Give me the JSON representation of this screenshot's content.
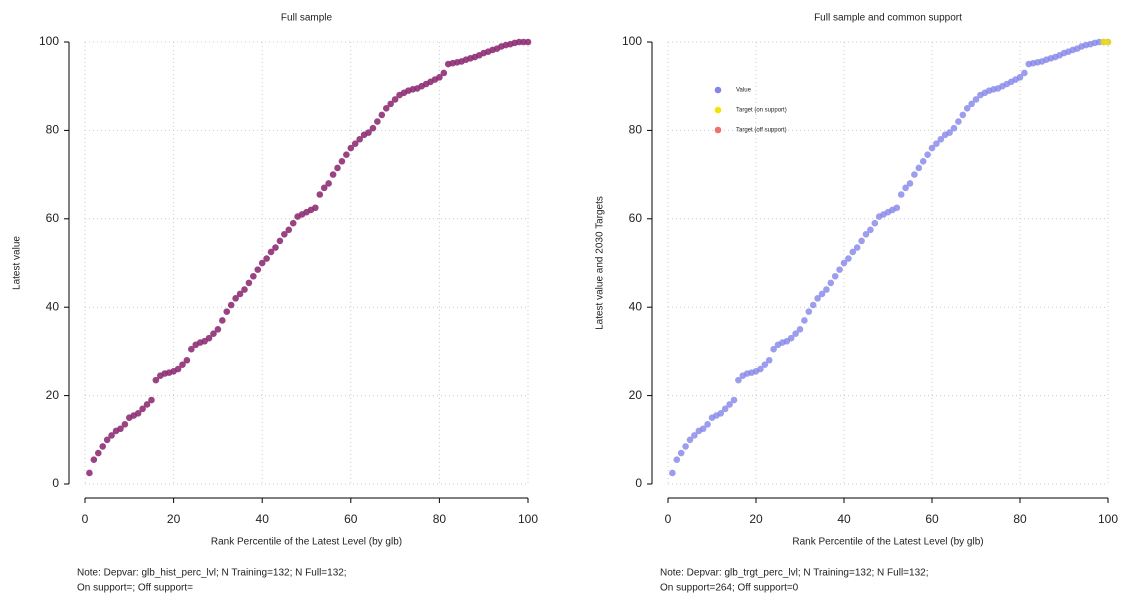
{
  "chart_data": [
    {
      "type": "scatter",
      "title": "Full sample",
      "xlabel": "Rank Percentile of the Latest Level (by glb)",
      "ylabel": "Latest value",
      "note": [
        "Note: Depvar: glb_hist_perc_lvl; N Training=132; N Full=132;",
        "On support=; Off support="
      ],
      "xlim": [
        0,
        100
      ],
      "ylim": [
        0,
        100
      ],
      "xticks": [
        0,
        20,
        40,
        60,
        80,
        100
      ],
      "yticks": [
        0,
        20,
        40,
        60,
        80,
        100
      ],
      "grid": true,
      "x": [
        1,
        2,
        3,
        4,
        5,
        6,
        7,
        8,
        9,
        10,
        11,
        12,
        13,
        14,
        15,
        16,
        17,
        18,
        19,
        20,
        21,
        22,
        23,
        24,
        25,
        26,
        27,
        28,
        29,
        30,
        31,
        32,
        33,
        34,
        35,
        36,
        37,
        38,
        39,
        40,
        41,
        42,
        43,
        44,
        45,
        46,
        47,
        48,
        49,
        50,
        51,
        52,
        53,
        54,
        55,
        56,
        57,
        58,
        59,
        60,
        61,
        62,
        63,
        64,
        65,
        66,
        67,
        68,
        69,
        70,
        71,
        72,
        73,
        74,
        75,
        76,
        77,
        78,
        79,
        80,
        81,
        82,
        83,
        84,
        85,
        86,
        87,
        88,
        89,
        90,
        91,
        92,
        93,
        94,
        95,
        96,
        97,
        98,
        99,
        100
      ],
      "series": [
        {
          "color": "#8e2f74",
          "values": [
            2.5,
            5.5,
            7,
            8.5,
            10,
            11,
            12,
            12.5,
            13.5,
            15,
            15.5,
            16,
            17,
            18,
            19,
            23.5,
            24.5,
            25,
            25.2,
            25.5,
            26,
            27,
            28,
            30.5,
            31.5,
            32,
            32.3,
            33,
            34,
            35,
            37,
            39,
            40.5,
            42,
            43,
            44,
            45.5,
            47,
            48.5,
            50,
            51,
            52.5,
            53.5,
            55,
            56.5,
            57.5,
            59,
            60.5,
            61,
            61.5,
            62,
            62.5,
            65.5,
            67,
            68,
            70,
            71.5,
            73,
            74.5,
            76,
            77,
            78,
            79,
            79.5,
            80.5,
            82,
            83.5,
            85,
            86,
            87,
            88,
            88.5,
            89,
            89.3,
            89.5,
            90,
            90.5,
            91,
            91.5,
            92,
            93,
            95,
            95.2,
            95.4,
            95.6,
            96,
            96.3,
            96.6,
            97,
            97.5,
            97.8,
            98.2,
            98.5,
            99,
            99.3,
            99.5,
            99.8,
            100,
            100,
            100
          ]
        }
      ]
    },
    {
      "type": "scatter",
      "title": "Full sample and common support",
      "xlabel": "Rank Percentile of the Latest Level (by glb)",
      "ylabel": "Latest value and 2030 Targets",
      "note": [
        "Note: Depvar: glb_trgt_perc_lvl; N Training=132; N Full=132;",
        "On support=264; Off support=0"
      ],
      "xlim": [
        0,
        100
      ],
      "ylim": [
        0,
        100
      ],
      "xticks": [
        0,
        20,
        40,
        60,
        80,
        100
      ],
      "yticks": [
        0,
        20,
        40,
        60,
        80,
        100
      ],
      "grid": true,
      "legend": "upper left",
      "x": [
        1,
        2,
        3,
        4,
        5,
        6,
        7,
        8,
        9,
        10,
        11,
        12,
        13,
        14,
        15,
        16,
        17,
        18,
        19,
        20,
        21,
        22,
        23,
        24,
        25,
        26,
        27,
        28,
        29,
        30,
        31,
        32,
        33,
        34,
        35,
        36,
        37,
        38,
        39,
        40,
        41,
        42,
        43,
        44,
        45,
        46,
        47,
        48,
        49,
        50,
        51,
        52,
        53,
        54,
        55,
        56,
        57,
        58,
        59,
        60,
        61,
        62,
        63,
        64,
        65,
        66,
        67,
        68,
        69,
        70,
        71,
        72,
        73,
        74,
        75,
        76,
        77,
        78,
        79,
        80,
        81,
        82,
        83,
        84,
        85,
        86,
        87,
        88,
        89,
        90,
        91,
        92,
        93,
        94,
        95,
        96,
        97,
        98,
        99,
        100
      ],
      "series": [
        {
          "name": "Value",
          "color": "#8585ea",
          "values": [
            2.5,
            5.5,
            7,
            8.5,
            10,
            11,
            12,
            12.5,
            13.5,
            15,
            15.5,
            16,
            17,
            18,
            19,
            23.5,
            24.5,
            25,
            25.2,
            25.5,
            26,
            27,
            28,
            30.5,
            31.5,
            32,
            32.3,
            33,
            34,
            35,
            37,
            39,
            40.5,
            42,
            43,
            44,
            45.5,
            47,
            48.5,
            50,
            51,
            52.5,
            53.5,
            55,
            56.5,
            57.5,
            59,
            60.5,
            61,
            61.5,
            62,
            62.5,
            65.5,
            67,
            68,
            70,
            71.5,
            73,
            74.5,
            76,
            77,
            78,
            79,
            79.5,
            80.5,
            82,
            83.5,
            85,
            86,
            87,
            88,
            88.5,
            89,
            89.3,
            89.5,
            90,
            90.5,
            91,
            91.5,
            92,
            93,
            95,
            95.2,
            95.4,
            95.6,
            96,
            96.3,
            96.6,
            97,
            97.5,
            97.8,
            98.2,
            98.5,
            99,
            99.3,
            99.5,
            99.8,
            100,
            100,
            100
          ]
        },
        {
          "name": "Target (on support)",
          "color": "#f2e600",
          "x": [
            99,
            100
          ],
          "values": [
            100,
            100
          ]
        },
        {
          "name": "Target (off support)",
          "color": "#f07070",
          "x": [],
          "values": []
        }
      ]
    }
  ]
}
